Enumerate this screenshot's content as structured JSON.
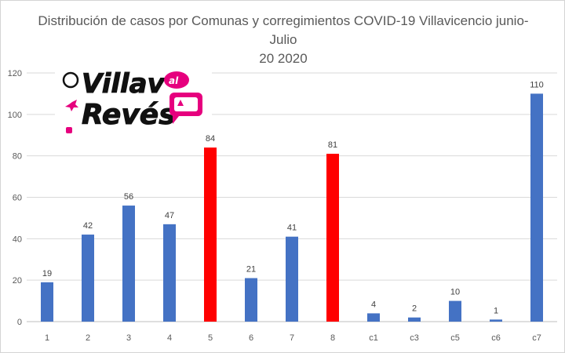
{
  "chart_data": {
    "type": "bar",
    "title_line1": "Distribución de casos por Comunas y corregimientos COVID-19 Villavicencio junio-Julio",
    "title_line2": "20 2020",
    "categories": [
      "1",
      "2",
      "3",
      "4",
      "5",
      "6",
      "7",
      "8",
      "c1",
      "c3",
      "c5",
      "c6",
      "c7"
    ],
    "values": [
      19,
      42,
      56,
      47,
      84,
      21,
      41,
      81,
      4,
      2,
      10,
      1,
      110
    ],
    "bar_colors": [
      "#4472c4",
      "#4472c4",
      "#4472c4",
      "#4472c4",
      "#ff0000",
      "#4472c4",
      "#4472c4",
      "#ff0000",
      "#4472c4",
      "#4472c4",
      "#4472c4",
      "#4472c4",
      "#4472c4"
    ],
    "ylim": [
      0,
      120
    ],
    "yticks": [
      0,
      20,
      40,
      60,
      80,
      100,
      120
    ],
    "grid": true,
    "xlabel": "",
    "ylabel": ""
  },
  "logo": {
    "text_top": "Villav",
    "text_al": "al",
    "text_bottom": "Revés",
    "accent_color": "#e6007e"
  }
}
